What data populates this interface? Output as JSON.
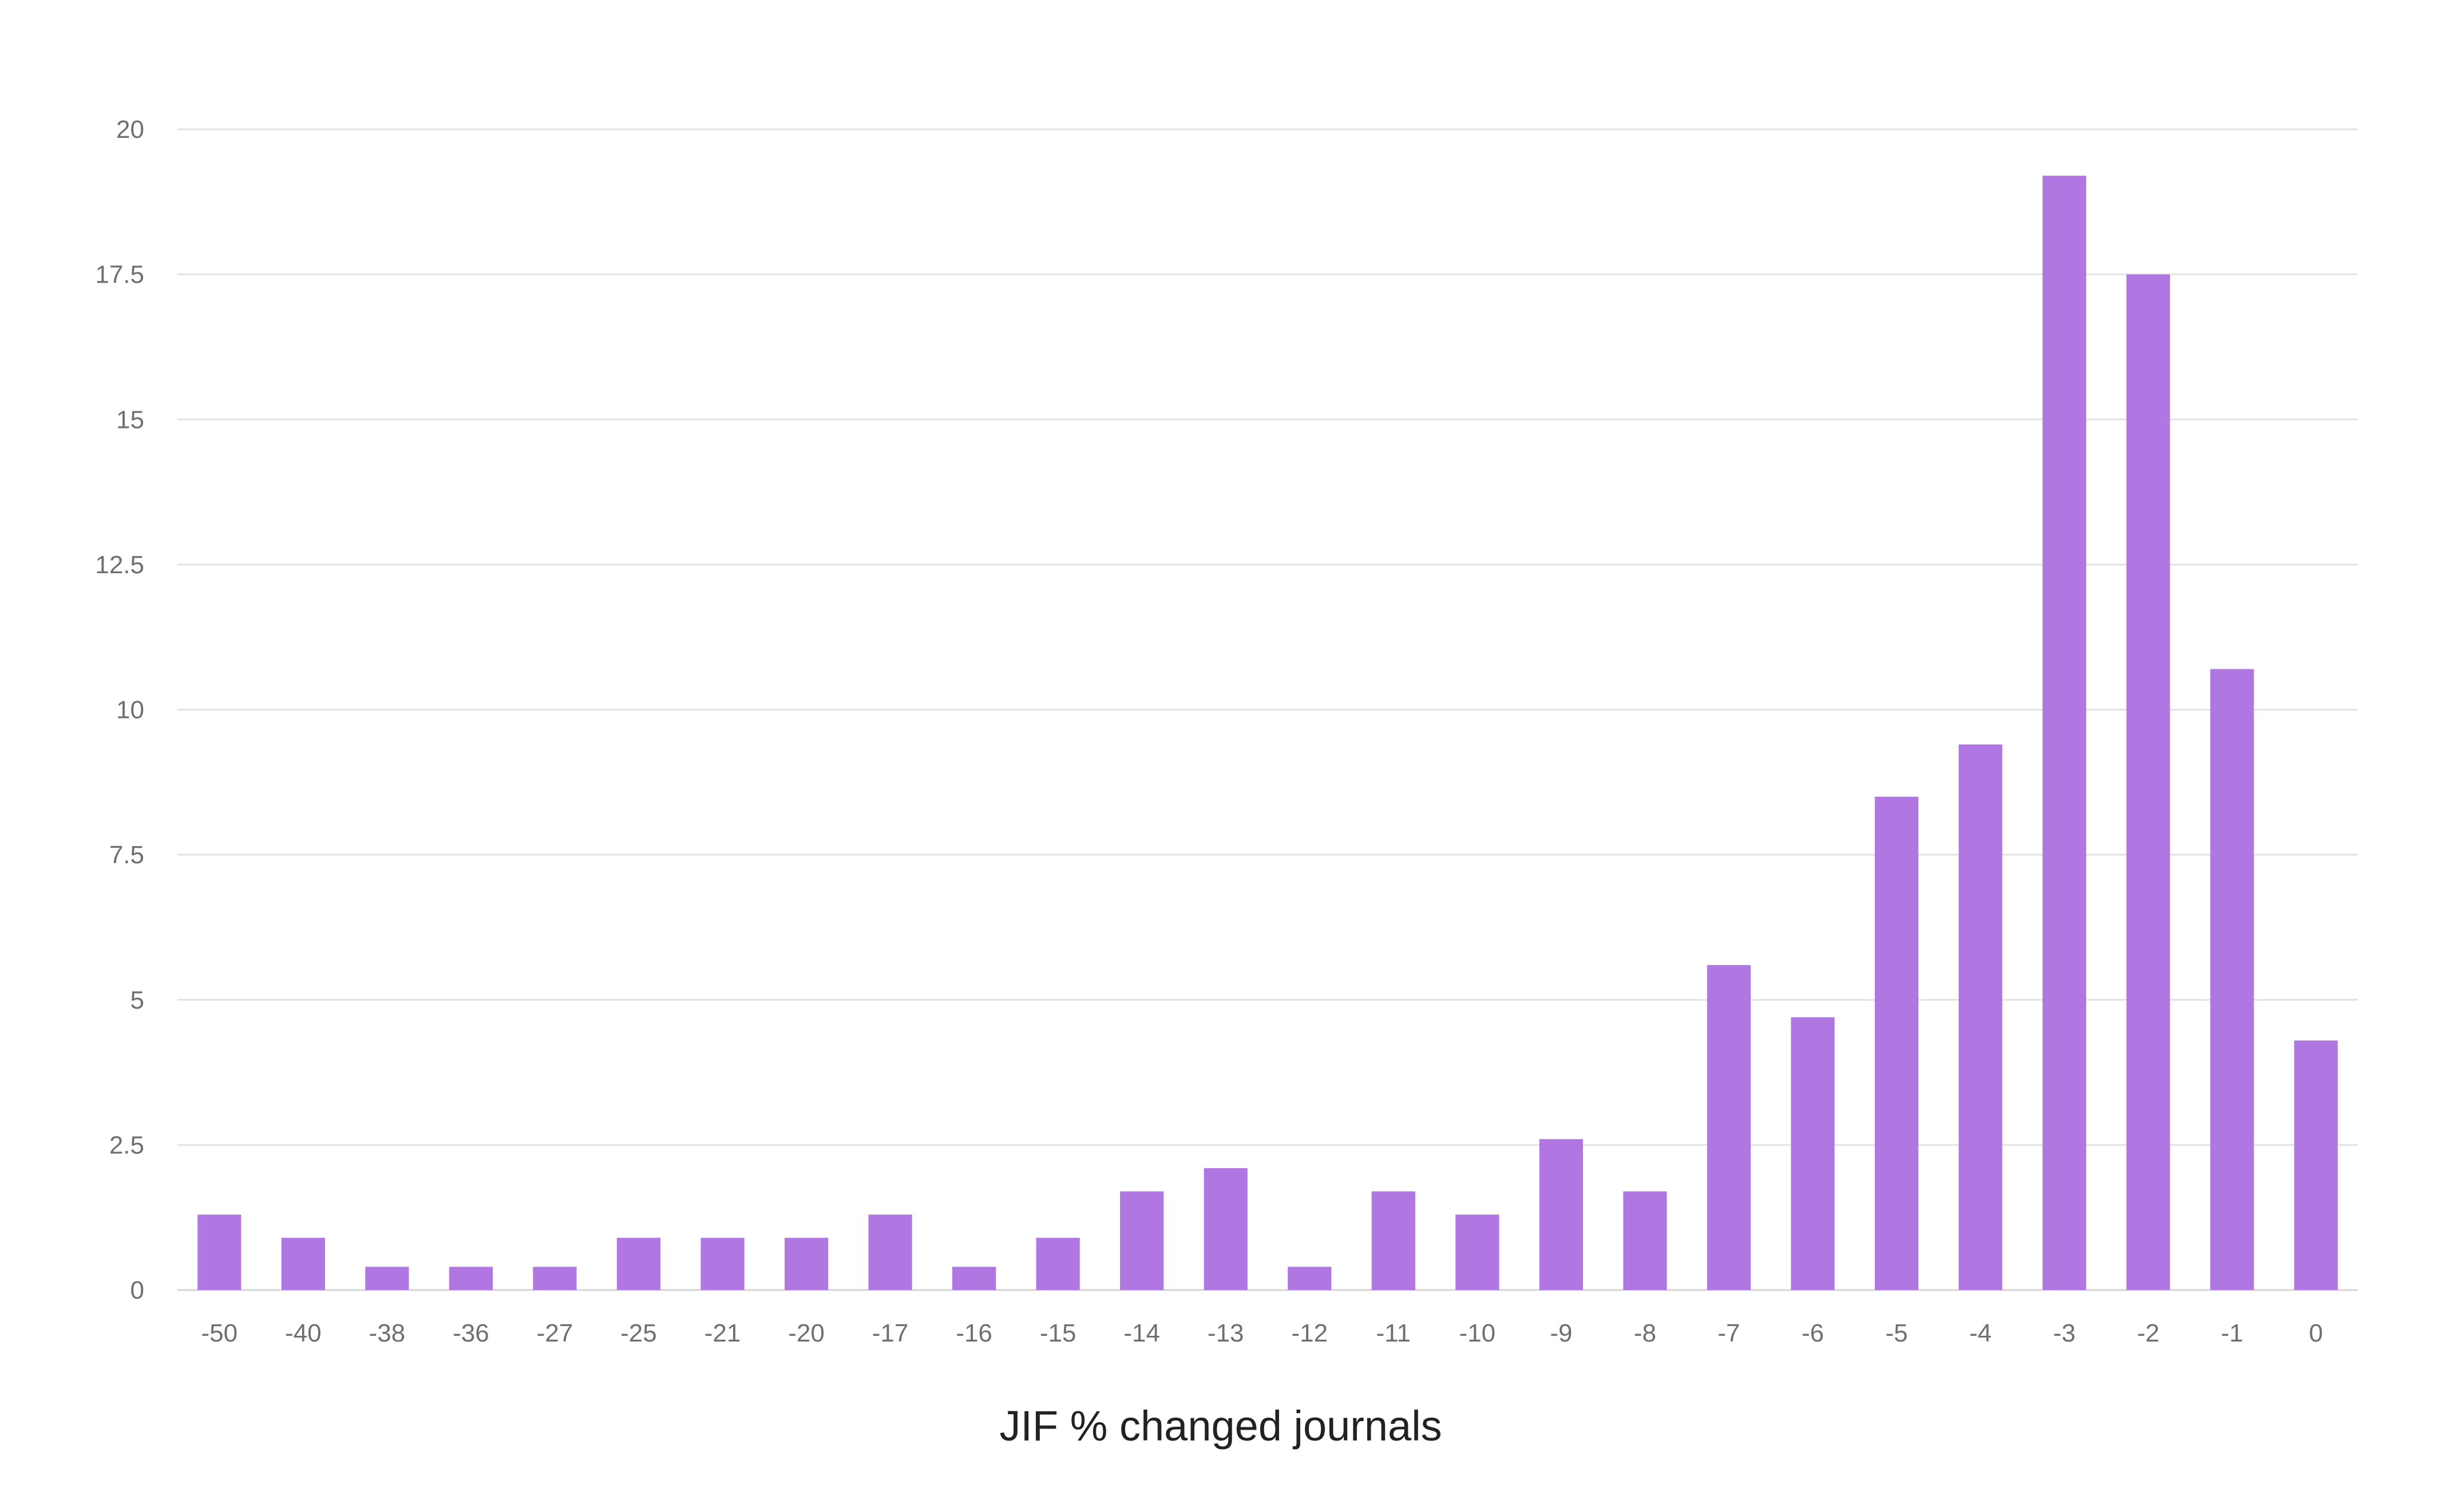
{
  "chart_data": {
    "type": "bar",
    "title": "",
    "xlabel": "JIF % changed journals",
    "ylabel": "",
    "categories": [
      "-50",
      "-40",
      "-38",
      "-36",
      "-27",
      "-25",
      "-21",
      "-20",
      "-17",
      "-16",
      "-15",
      "-14",
      "-13",
      "-12",
      "-11",
      "-10",
      "-9",
      "-8",
      "-7",
      "-6",
      "-5",
      "-4",
      "-3",
      "-2",
      "-1",
      "0"
    ],
    "values": [
      1.3,
      0.9,
      0.4,
      0.4,
      0.4,
      0.9,
      0.9,
      0.9,
      1.3,
      0.4,
      0.9,
      1.7,
      2.1,
      0.4,
      1.7,
      1.3,
      2.6,
      1.7,
      5.6,
      4.7,
      8.5,
      9.4,
      19.2,
      17.5,
      10.7,
      4.3
    ],
    "ylim": [
      0,
      20
    ],
    "yticks": [
      "0",
      "2.5",
      "5",
      "7.5",
      "10",
      "12.5",
      "15",
      "17.5",
      "20"
    ],
    "grid": true,
    "legend": "none",
    "bar_color": "#b076e2"
  }
}
